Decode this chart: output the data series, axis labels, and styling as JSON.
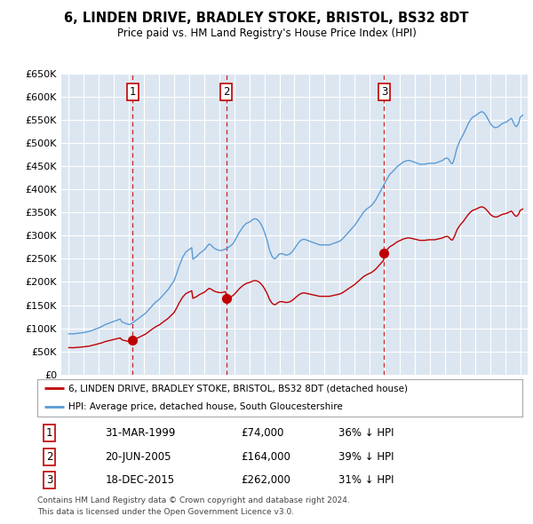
{
  "title": "6, LINDEN DRIVE, BRADLEY STOKE, BRISTOL, BS32 8DT",
  "subtitle": "Price paid vs. HM Land Registry's House Price Index (HPI)",
  "legend_line1": "6, LINDEN DRIVE, BRADLEY STOKE, BRISTOL, BS32 8DT (detached house)",
  "legend_line2": "HPI: Average price, detached house, South Gloucestershire",
  "footer1": "Contains HM Land Registry data © Crown copyright and database right 2024.",
  "footer2": "This data is licensed under the Open Government Licence v3.0.",
  "sales": [
    {
      "num": 1,
      "year": 1999.25,
      "price": 74000,
      "label": "31-MAR-1999",
      "amount": "£74,000",
      "pct": "36% ↓ HPI"
    },
    {
      "num": 2,
      "year": 2005.47,
      "price": 164000,
      "label": "20-JUN-2005",
      "amount": "£164,000",
      "pct": "39% ↓ HPI"
    },
    {
      "num": 3,
      "year": 2015.96,
      "price": 262000,
      "label": "18-DEC-2015",
      "amount": "£262,000",
      "pct": "31% ↓ HPI"
    }
  ],
  "hpi_color": "#5b9bd5",
  "price_color": "#c00000",
  "background_color": "#dce6f1",
  "ylim": [
    0,
    650000
  ],
  "yticks": [
    0,
    50000,
    100000,
    150000,
    200000,
    250000,
    300000,
    350000,
    400000,
    450000,
    500000,
    550000,
    600000,
    650000
  ],
  "xlim_start": 1994.5,
  "xlim_end": 2025.5,
  "hpi_data": [
    [
      1995.0,
      88000
    ],
    [
      1995.08,
      88500
    ],
    [
      1995.17,
      88200
    ],
    [
      1995.25,
      87800
    ],
    [
      1995.33,
      88100
    ],
    [
      1995.42,
      88500
    ],
    [
      1995.5,
      89000
    ],
    [
      1995.58,
      89200
    ],
    [
      1995.67,
      89500
    ],
    [
      1995.75,
      90000
    ],
    [
      1995.83,
      90200
    ],
    [
      1995.92,
      90500
    ],
    [
      1996.0,
      91000
    ],
    [
      1996.08,
      91500
    ],
    [
      1996.17,
      92000
    ],
    [
      1996.25,
      92500
    ],
    [
      1996.33,
      93000
    ],
    [
      1996.42,
      94000
    ],
    [
      1996.5,
      95000
    ],
    [
      1996.58,
      96000
    ],
    [
      1996.67,
      97000
    ],
    [
      1996.75,
      98000
    ],
    [
      1996.83,
      99000
    ],
    [
      1996.92,
      100000
    ],
    [
      1997.0,
      101000
    ],
    [
      1997.08,
      102000
    ],
    [
      1997.17,
      103500
    ],
    [
      1997.25,
      105000
    ],
    [
      1997.33,
      106500
    ],
    [
      1997.42,
      108000
    ],
    [
      1997.5,
      109000
    ],
    [
      1997.58,
      110000
    ],
    [
      1997.67,
      111000
    ],
    [
      1997.75,
      112000
    ],
    [
      1997.83,
      113000
    ],
    [
      1997.92,
      114000
    ],
    [
      1998.0,
      115000
    ],
    [
      1998.08,
      116000
    ],
    [
      1998.17,
      117000
    ],
    [
      1998.25,
      118000
    ],
    [
      1998.33,
      119000
    ],
    [
      1998.42,
      120000
    ],
    [
      1998.5,
      115000
    ],
    [
      1998.58,
      113000
    ],
    [
      1998.67,
      112000
    ],
    [
      1998.75,
      111000
    ],
    [
      1998.83,
      110000
    ],
    [
      1998.92,
      109000
    ],
    [
      1999.0,
      108000
    ],
    [
      1999.08,
      109000
    ],
    [
      1999.17,
      110000
    ],
    [
      1999.25,
      112000
    ],
    [
      1999.33,
      114000
    ],
    [
      1999.42,
      116000
    ],
    [
      1999.5,
      118000
    ],
    [
      1999.58,
      120000
    ],
    [
      1999.67,
      122000
    ],
    [
      1999.75,
      124000
    ],
    [
      1999.83,
      126000
    ],
    [
      1999.92,
      128000
    ],
    [
      2000.0,
      130000
    ],
    [
      2000.08,
      132000
    ],
    [
      2000.17,
      135000
    ],
    [
      2000.25,
      138000
    ],
    [
      2000.33,
      141000
    ],
    [
      2000.42,
      144000
    ],
    [
      2000.5,
      147000
    ],
    [
      2000.58,
      150000
    ],
    [
      2000.67,
      153000
    ],
    [
      2000.75,
      156000
    ],
    [
      2000.83,
      158000
    ],
    [
      2000.92,
      160000
    ],
    [
      2001.0,
      162000
    ],
    [
      2001.08,
      165000
    ],
    [
      2001.17,
      168000
    ],
    [
      2001.25,
      171000
    ],
    [
      2001.33,
      174000
    ],
    [
      2001.42,
      177000
    ],
    [
      2001.5,
      180000
    ],
    [
      2001.58,
      183000
    ],
    [
      2001.67,
      187000
    ],
    [
      2001.75,
      191000
    ],
    [
      2001.83,
      195000
    ],
    [
      2001.92,
      199000
    ],
    [
      2002.0,
      203000
    ],
    [
      2002.08,
      210000
    ],
    [
      2002.17,
      218000
    ],
    [
      2002.25,
      226000
    ],
    [
      2002.33,
      234000
    ],
    [
      2002.42,
      241000
    ],
    [
      2002.5,
      248000
    ],
    [
      2002.58,
      254000
    ],
    [
      2002.67,
      259000
    ],
    [
      2002.75,
      263000
    ],
    [
      2002.83,
      266000
    ],
    [
      2002.92,
      268000
    ],
    [
      2003.0,
      270000
    ],
    [
      2003.08,
      272000
    ],
    [
      2003.17,
      274000
    ],
    [
      2003.25,
      249000
    ],
    [
      2003.33,
      251000
    ],
    [
      2003.42,
      253000
    ],
    [
      2003.5,
      255000
    ],
    [
      2003.58,
      258000
    ],
    [
      2003.67,
      261000
    ],
    [
      2003.75,
      263000
    ],
    [
      2003.83,
      265000
    ],
    [
      2003.92,
      267000
    ],
    [
      2004.0,
      269000
    ],
    [
      2004.08,
      272000
    ],
    [
      2004.17,
      276000
    ],
    [
      2004.25,
      279000
    ],
    [
      2004.33,
      282000
    ],
    [
      2004.42,
      280000
    ],
    [
      2004.5,
      278000
    ],
    [
      2004.58,
      275000
    ],
    [
      2004.67,
      273000
    ],
    [
      2004.75,
      271000
    ],
    [
      2004.83,
      270000
    ],
    [
      2004.92,
      269000
    ],
    [
      2005.0,
      268000
    ],
    [
      2005.08,
      268000
    ],
    [
      2005.17,
      268000
    ],
    [
      2005.25,
      269000
    ],
    [
      2005.33,
      270000
    ],
    [
      2005.42,
      271000
    ],
    [
      2005.5,
      272000
    ],
    [
      2005.58,
      274000
    ],
    [
      2005.67,
      276000
    ],
    [
      2005.75,
      278000
    ],
    [
      2005.83,
      280000
    ],
    [
      2005.92,
      283000
    ],
    [
      2006.0,
      287000
    ],
    [
      2006.08,
      292000
    ],
    [
      2006.17,
      297000
    ],
    [
      2006.25,
      302000
    ],
    [
      2006.33,
      307000
    ],
    [
      2006.42,
      311000
    ],
    [
      2006.5,
      315000
    ],
    [
      2006.58,
      319000
    ],
    [
      2006.67,
      322000
    ],
    [
      2006.75,
      325000
    ],
    [
      2006.83,
      327000
    ],
    [
      2006.92,
      328000
    ],
    [
      2007.0,
      329000
    ],
    [
      2007.08,
      331000
    ],
    [
      2007.17,
      333000
    ],
    [
      2007.25,
      335000
    ],
    [
      2007.33,
      336000
    ],
    [
      2007.42,
      336000
    ],
    [
      2007.5,
      335000
    ],
    [
      2007.58,
      333000
    ],
    [
      2007.67,
      330000
    ],
    [
      2007.75,
      326000
    ],
    [
      2007.83,
      321000
    ],
    [
      2007.92,
      315000
    ],
    [
      2008.0,
      308000
    ],
    [
      2008.08,
      300000
    ],
    [
      2008.17,
      291000
    ],
    [
      2008.25,
      281000
    ],
    [
      2008.33,
      270000
    ],
    [
      2008.42,
      262000
    ],
    [
      2008.5,
      256000
    ],
    [
      2008.58,
      252000
    ],
    [
      2008.67,
      250000
    ],
    [
      2008.75,
      251000
    ],
    [
      2008.83,
      254000
    ],
    [
      2008.92,
      258000
    ],
    [
      2009.0,
      260000
    ],
    [
      2009.08,
      261000
    ],
    [
      2009.17,
      261000
    ],
    [
      2009.25,
      260000
    ],
    [
      2009.33,
      259000
    ],
    [
      2009.42,
      258000
    ],
    [
      2009.5,
      258000
    ],
    [
      2009.58,
      259000
    ],
    [
      2009.67,
      260000
    ],
    [
      2009.75,
      262000
    ],
    [
      2009.83,
      265000
    ],
    [
      2009.92,
      268000
    ],
    [
      2010.0,
      272000
    ],
    [
      2010.08,
      276000
    ],
    [
      2010.17,
      280000
    ],
    [
      2010.25,
      284000
    ],
    [
      2010.33,
      287000
    ],
    [
      2010.42,
      289000
    ],
    [
      2010.5,
      291000
    ],
    [
      2010.58,
      292000
    ],
    [
      2010.67,
      292000
    ],
    [
      2010.75,
      291000
    ],
    [
      2010.83,
      290000
    ],
    [
      2010.92,
      289000
    ],
    [
      2011.0,
      288000
    ],
    [
      2011.08,
      287000
    ],
    [
      2011.17,
      286000
    ],
    [
      2011.25,
      285000
    ],
    [
      2011.33,
      284000
    ],
    [
      2011.42,
      283000
    ],
    [
      2011.5,
      282000
    ],
    [
      2011.58,
      281000
    ],
    [
      2011.67,
      280000
    ],
    [
      2011.75,
      280000
    ],
    [
      2011.83,
      280000
    ],
    [
      2011.92,
      280000
    ],
    [
      2012.0,
      280000
    ],
    [
      2012.08,
      280000
    ],
    [
      2012.17,
      280000
    ],
    [
      2012.25,
      280000
    ],
    [
      2012.33,
      280000
    ],
    [
      2012.42,
      281000
    ],
    [
      2012.5,
      282000
    ],
    [
      2012.58,
      283000
    ],
    [
      2012.67,
      284000
    ],
    [
      2012.75,
      285000
    ],
    [
      2012.83,
      286000
    ],
    [
      2012.92,
      287000
    ],
    [
      2013.0,
      288000
    ],
    [
      2013.08,
      290000
    ],
    [
      2013.17,
      292000
    ],
    [
      2013.25,
      295000
    ],
    [
      2013.33,
      298000
    ],
    [
      2013.42,
      301000
    ],
    [
      2013.5,
      304000
    ],
    [
      2013.58,
      307000
    ],
    [
      2013.67,
      310000
    ],
    [
      2013.75,
      313000
    ],
    [
      2013.83,
      316000
    ],
    [
      2013.92,
      319000
    ],
    [
      2014.0,
      322000
    ],
    [
      2014.08,
      326000
    ],
    [
      2014.17,
      330000
    ],
    [
      2014.25,
      334000
    ],
    [
      2014.33,
      338000
    ],
    [
      2014.42,
      342000
    ],
    [
      2014.5,
      346000
    ],
    [
      2014.58,
      350000
    ],
    [
      2014.67,
      353000
    ],
    [
      2014.75,
      356000
    ],
    [
      2014.83,
      358000
    ],
    [
      2014.92,
      360000
    ],
    [
      2015.0,
      362000
    ],
    [
      2015.08,
      364000
    ],
    [
      2015.17,
      367000
    ],
    [
      2015.25,
      370000
    ],
    [
      2015.33,
      374000
    ],
    [
      2015.42,
      378000
    ],
    [
      2015.5,
      383000
    ],
    [
      2015.58,
      388000
    ],
    [
      2015.67,
      393000
    ],
    [
      2015.75,
      398000
    ],
    [
      2015.83,
      403000
    ],
    [
      2015.92,
      408000
    ],
    [
      2016.0,
      413000
    ],
    [
      2016.08,
      418000
    ],
    [
      2016.17,
      423000
    ],
    [
      2016.25,
      428000
    ],
    [
      2016.33,
      432000
    ],
    [
      2016.42,
      435000
    ],
    [
      2016.5,
      437000
    ],
    [
      2016.58,
      440000
    ],
    [
      2016.67,
      443000
    ],
    [
      2016.75,
      446000
    ],
    [
      2016.83,
      449000
    ],
    [
      2016.92,
      451000
    ],
    [
      2017.0,
      453000
    ],
    [
      2017.08,
      455000
    ],
    [
      2017.17,
      457000
    ],
    [
      2017.25,
      459000
    ],
    [
      2017.33,
      460000
    ],
    [
      2017.42,
      461000
    ],
    [
      2017.5,
      462000
    ],
    [
      2017.58,
      462000
    ],
    [
      2017.67,
      462000
    ],
    [
      2017.75,
      461000
    ],
    [
      2017.83,
      460000
    ],
    [
      2017.92,
      459000
    ],
    [
      2018.0,
      458000
    ],
    [
      2018.08,
      457000
    ],
    [
      2018.17,
      456000
    ],
    [
      2018.25,
      455000
    ],
    [
      2018.33,
      454000
    ],
    [
      2018.42,
      454000
    ],
    [
      2018.5,
      454000
    ],
    [
      2018.58,
      454000
    ],
    [
      2018.67,
      454000
    ],
    [
      2018.75,
      455000
    ],
    [
      2018.83,
      455000
    ],
    [
      2018.92,
      456000
    ],
    [
      2019.0,
      456000
    ],
    [
      2019.08,
      456000
    ],
    [
      2019.17,
      456000
    ],
    [
      2019.25,
      456000
    ],
    [
      2019.33,
      456000
    ],
    [
      2019.42,
      457000
    ],
    [
      2019.5,
      458000
    ],
    [
      2019.58,
      459000
    ],
    [
      2019.67,
      460000
    ],
    [
      2019.75,
      461000
    ],
    [
      2019.83,
      462000
    ],
    [
      2019.92,
      464000
    ],
    [
      2020.0,
      466000
    ],
    [
      2020.08,
      467000
    ],
    [
      2020.17,
      467000
    ],
    [
      2020.25,
      465000
    ],
    [
      2020.33,
      460000
    ],
    [
      2020.42,
      456000
    ],
    [
      2020.5,
      455000
    ],
    [
      2020.58,
      462000
    ],
    [
      2020.67,
      472000
    ],
    [
      2020.75,
      483000
    ],
    [
      2020.83,
      492000
    ],
    [
      2020.92,
      499000
    ],
    [
      2021.0,
      505000
    ],
    [
      2021.08,
      510000
    ],
    [
      2021.17,
      515000
    ],
    [
      2021.25,
      520000
    ],
    [
      2021.33,
      526000
    ],
    [
      2021.42,
      532000
    ],
    [
      2021.5,
      538000
    ],
    [
      2021.58,
      543000
    ],
    [
      2021.67,
      548000
    ],
    [
      2021.75,
      552000
    ],
    [
      2021.83,
      555000
    ],
    [
      2021.92,
      557000
    ],
    [
      2022.0,
      558000
    ],
    [
      2022.08,
      560000
    ],
    [
      2022.17,
      562000
    ],
    [
      2022.25,
      564000
    ],
    [
      2022.33,
      566000
    ],
    [
      2022.42,
      567000
    ],
    [
      2022.5,
      567000
    ],
    [
      2022.58,
      565000
    ],
    [
      2022.67,
      562000
    ],
    [
      2022.75,
      558000
    ],
    [
      2022.83,
      553000
    ],
    [
      2022.92,
      548000
    ],
    [
      2023.0,
      543000
    ],
    [
      2023.08,
      539000
    ],
    [
      2023.17,
      536000
    ],
    [
      2023.25,
      534000
    ],
    [
      2023.33,
      533000
    ],
    [
      2023.42,
      533000
    ],
    [
      2023.5,
      534000
    ],
    [
      2023.58,
      536000
    ],
    [
      2023.67,
      538000
    ],
    [
      2023.75,
      540000
    ],
    [
      2023.83,
      542000
    ],
    [
      2023.92,
      543000
    ],
    [
      2024.0,
      544000
    ],
    [
      2024.08,
      545000
    ],
    [
      2024.17,
      547000
    ],
    [
      2024.25,
      549000
    ],
    [
      2024.33,
      551000
    ],
    [
      2024.42,
      553000
    ],
    [
      2024.5,
      548000
    ],
    [
      2024.58,
      542000
    ],
    [
      2024.67,
      537000
    ],
    [
      2024.75,
      535000
    ],
    [
      2024.83,
      538000
    ],
    [
      2024.92,
      545000
    ],
    [
      2025.0,
      555000
    ],
    [
      2025.17,
      560000
    ]
  ]
}
